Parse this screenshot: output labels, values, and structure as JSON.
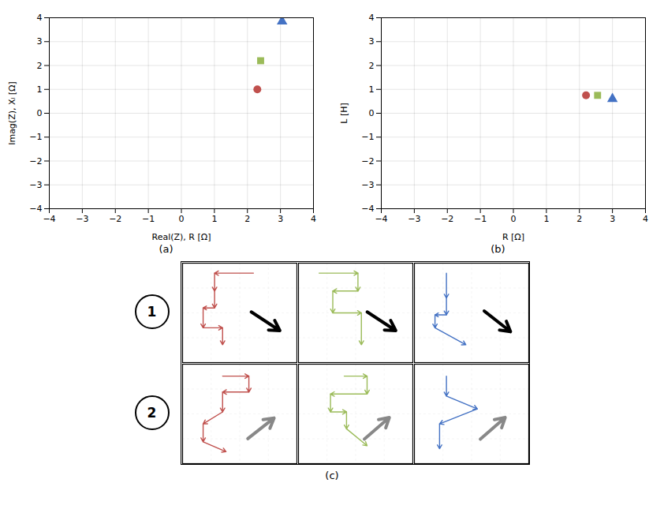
{
  "chart_data": [
    {
      "type": "scatter",
      "x": [
        2.3,
        2.4,
        3.05
      ],
      "y": [
        1.0,
        2.2,
        3.85
      ],
      "colors": [
        "#c0504d",
        "#9bbb59",
        "#4472c4"
      ],
      "markers": [
        "circle",
        "square",
        "triangle"
      ],
      "xlabel": "Real(Z), R [Ω]",
      "ylabel": "Imag(Z), Xₗ [Ω]",
      "xlim": [
        -4,
        4
      ],
      "ylim": [
        -4,
        4
      ],
      "xticks": [
        -4,
        -3,
        -2,
        -1,
        0,
        1,
        2,
        3,
        4
      ],
      "yticks": [
        -4,
        -3,
        -2,
        -1,
        0,
        1,
        2,
        3,
        4
      ],
      "grid": true,
      "caption": "(a)"
    },
    {
      "type": "scatter",
      "x": [
        2.2,
        2.55,
        3.0
      ],
      "y": [
        0.75,
        0.75,
        0.6
      ],
      "colors": [
        "#c0504d",
        "#9bbb59",
        "#4472c4"
      ],
      "markers": [
        "circle",
        "square",
        "triangle"
      ],
      "xlabel": "R [Ω]",
      "ylabel": "L [H]",
      "xlim": [
        -4,
        4
      ],
      "ylim": [
        -4,
        4
      ],
      "xticks": [
        -4,
        -3,
        -2,
        -1,
        0,
        1,
        2,
        3,
        4
      ],
      "yticks": [
        -4,
        -3,
        -2,
        -1,
        0,
        1,
        2,
        3,
        4
      ],
      "grid": true,
      "caption": "(b)"
    },
    {
      "type": "path",
      "caption": "(c)",
      "xlim": [
        0,
        1
      ],
      "ylim": [
        0,
        1
      ],
      "xticks": [
        0.25,
        0.5,
        0.75
      ],
      "yticks": [
        0.25,
        0.5,
        0.75
      ],
      "grid": true,
      "tick_labels": false,
      "rows": [
        {
          "label": "1",
          "cells": [
            {
              "color": "#c0504d",
              "path": [
                [
                  0.62,
                  0.9
                ],
                [
                  0.28,
                  0.9
                ],
                [
                  0.28,
                  0.72
                ],
                [
                  0.28,
                  0.55
                ],
                [
                  0.18,
                  0.55
                ],
                [
                  0.18,
                  0.35
                ],
                [
                  0.35,
                  0.35
                ],
                [
                  0.35,
                  0.18
                ]
              ],
              "arrow": {
                "dx": 0.6,
                "dy": -0.5
              }
            },
            {
              "color": "#9bbb59",
              "path": [
                [
                  0.18,
                  0.9
                ],
                [
                  0.52,
                  0.9
                ],
                [
                  0.52,
                  0.72
                ],
                [
                  0.3,
                  0.72
                ],
                [
                  0.3,
                  0.5
                ],
                [
                  0.55,
                  0.5
                ],
                [
                  0.55,
                  0.18
                ]
              ],
              "arrow": {
                "dx": 0.6,
                "dy": -0.5
              }
            },
            {
              "color": "#4472c4",
              "path": [
                [
                  0.28,
                  0.9
                ],
                [
                  0.28,
                  0.65
                ],
                [
                  0.28,
                  0.48
                ],
                [
                  0.18,
                  0.48
                ],
                [
                  0.18,
                  0.35
                ],
                [
                  0.45,
                  0.18
                ]
              ],
              "arrow": {
                "dx": 0.55,
                "dy": -0.55
              }
            }
          ]
        },
        {
          "label": "2",
          "cells": [
            {
              "color": "#c0504d",
              "path": [
                [
                  0.35,
                  0.88
                ],
                [
                  0.58,
                  0.88
                ],
                [
                  0.58,
                  0.72
                ],
                [
                  0.35,
                  0.72
                ],
                [
                  0.35,
                  0.52
                ],
                [
                  0.18,
                  0.4
                ],
                [
                  0.18,
                  0.22
                ],
                [
                  0.38,
                  0.12
                ]
              ],
              "arrow": {
                "dx": 0.5,
                "dy": 0.5
              }
            },
            {
              "color": "#9bbb59",
              "path": [
                [
                  0.4,
                  0.88
                ],
                [
                  0.6,
                  0.88
                ],
                [
                  0.6,
                  0.7
                ],
                [
                  0.28,
                  0.7
                ],
                [
                  0.28,
                  0.52
                ],
                [
                  0.42,
                  0.52
                ],
                [
                  0.42,
                  0.35
                ],
                [
                  0.6,
                  0.18
                ]
              ],
              "arrow": {
                "dx": 0.5,
                "dy": 0.55
              }
            },
            {
              "color": "#4472c4",
              "path": [
                [
                  0.28,
                  0.88
                ],
                [
                  0.28,
                  0.68
                ],
                [
                  0.55,
                  0.55
                ],
                [
                  0.22,
                  0.4
                ],
                [
                  0.22,
                  0.15
                ]
              ],
              "arrow": {
                "dx": 0.45,
                "dy": 0.5
              }
            }
          ]
        }
      ]
    }
  ]
}
